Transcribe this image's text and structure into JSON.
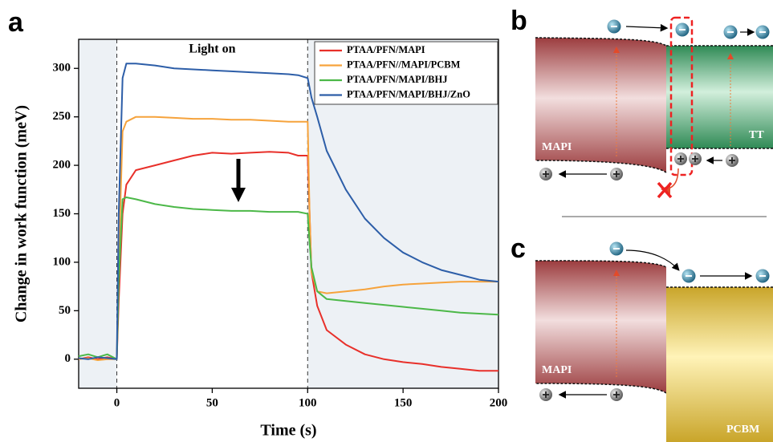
{
  "chart_data": {
    "type": "line",
    "xlabel": "Time (s)",
    "ylabel": "Change in work function (meV)",
    "annotation": "Light on",
    "light_on": [
      0,
      100
    ],
    "x": [
      -20,
      -15,
      -10,
      -5,
      0,
      1,
      3,
      5,
      10,
      20,
      30,
      40,
      50,
      60,
      70,
      80,
      90,
      95,
      100,
      101,
      102,
      105,
      110,
      120,
      130,
      140,
      150,
      160,
      170,
      180,
      190,
      200
    ],
    "series": [
      {
        "name": "PTAA/PFN/MAPI",
        "color": "#e8302a",
        "values": [
          0,
          2,
          0,
          2,
          0,
          60,
          150,
          180,
          195,
          200,
          205,
          210,
          213,
          212,
          213,
          214,
          213,
          210,
          210,
          150,
          90,
          55,
          30,
          15,
          5,
          0,
          -3,
          -5,
          -8,
          -10,
          -12,
          -12
        ]
      },
      {
        "name": "PTAA/PFN//MAPI/PCBM",
        "color": "#f6a33c",
        "values": [
          0,
          1,
          -1,
          0,
          0,
          100,
          235,
          245,
          250,
          250,
          249,
          248,
          248,
          247,
          247,
          246,
          245,
          245,
          245,
          150,
          90,
          70,
          68,
          70,
          72,
          75,
          77,
          78,
          79,
          80,
          80,
          80
        ]
      },
      {
        "name": "PTAA/PFN/MAPI/BHJ",
        "color": "#4cb848",
        "values": [
          3,
          5,
          2,
          5,
          0,
          80,
          165,
          167,
          165,
          160,
          157,
          155,
          154,
          153,
          153,
          152,
          152,
          152,
          150,
          120,
          95,
          70,
          62,
          60,
          58,
          56,
          54,
          52,
          50,
          48,
          47,
          46
        ]
      },
      {
        "name": "PTAA/PFN/MAPI/BHJ/ZnO",
        "color": "#2d5ea8",
        "values": [
          1,
          0,
          2,
          1,
          0,
          150,
          290,
          305,
          305,
          303,
          300,
          299,
          298,
          297,
          296,
          295,
          294,
          293,
          290,
          280,
          270,
          250,
          215,
          175,
          145,
          125,
          110,
          100,
          92,
          87,
          82,
          80
        ]
      }
    ],
    "xlim": [
      -20,
      200
    ],
    "xticks": [
      0,
      50,
      100,
      150,
      200
    ],
    "ylim": [
      -30,
      330
    ],
    "yticks": [
      0,
      50,
      100,
      150,
      200,
      250,
      300
    ],
    "legend": "upper right"
  },
  "panel_labels": [
    "a",
    "b",
    "c"
  ],
  "diagram_b": {
    "left": "MAPI",
    "right": "TT"
  },
  "diagram_c": {
    "left": "MAPI",
    "right": "PCBM"
  }
}
